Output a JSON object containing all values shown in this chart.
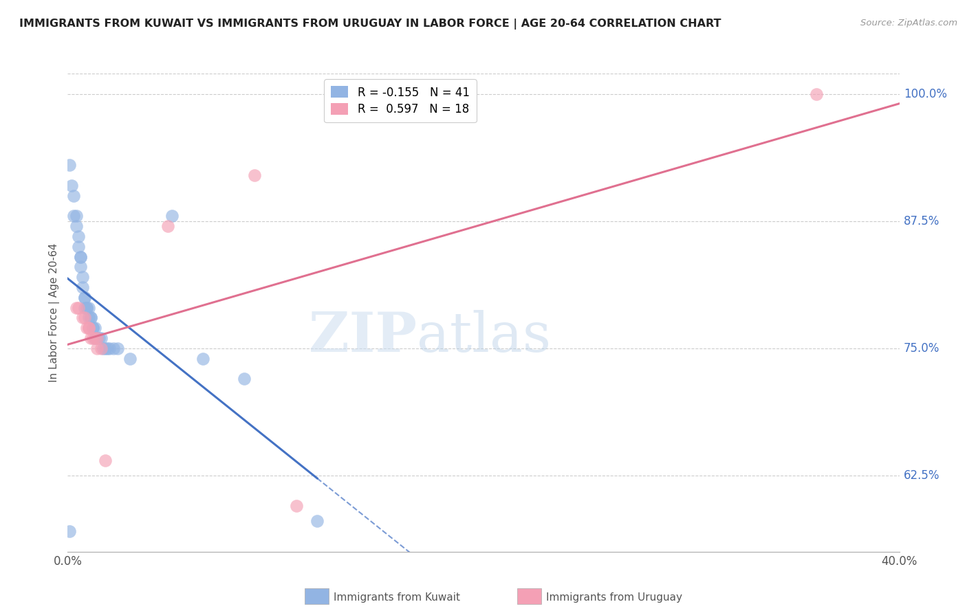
{
  "title": "IMMIGRANTS FROM KUWAIT VS IMMIGRANTS FROM URUGUAY IN LABOR FORCE | AGE 20-64 CORRELATION CHART",
  "source": "Source: ZipAtlas.com",
  "ylabel": "In Labor Force | Age 20-64",
  "xlim": [
    0.0,
    0.4
  ],
  "ylim": [
    0.55,
    1.02
  ],
  "yticks": [
    0.625,
    0.75,
    0.875,
    1.0
  ],
  "ytick_labels": [
    "62.5%",
    "75.0%",
    "87.5%",
    "100.0%"
  ],
  "xticks": [
    0.0,
    0.05,
    0.1,
    0.15,
    0.2,
    0.25,
    0.3,
    0.35,
    0.4
  ],
  "xtick_labels": [
    "0.0%",
    "",
    "",
    "",
    "",
    "",
    "",
    "",
    "40.0%"
  ],
  "kuwait_color": "#92b4e3",
  "uruguay_color": "#f4a0b5",
  "kuwait_R": -0.155,
  "kuwait_N": 41,
  "uruguay_R": 0.597,
  "uruguay_N": 18,
  "kuwait_line_color": "#4472c4",
  "uruguay_line_color": "#e07090",
  "watermark_zip": "ZIP",
  "watermark_atlas": "atlas",
  "kuwait_x": [
    0.001,
    0.002,
    0.003,
    0.003,
    0.004,
    0.004,
    0.005,
    0.005,
    0.006,
    0.006,
    0.006,
    0.007,
    0.007,
    0.008,
    0.008,
    0.008,
    0.009,
    0.009,
    0.01,
    0.01,
    0.011,
    0.011,
    0.012,
    0.012,
    0.013,
    0.013,
    0.014,
    0.015,
    0.016,
    0.017,
    0.018,
    0.019,
    0.02,
    0.022,
    0.024,
    0.03,
    0.05,
    0.065,
    0.085,
    0.12,
    0.001
  ],
  "kuwait_y": [
    0.93,
    0.91,
    0.9,
    0.88,
    0.88,
    0.87,
    0.86,
    0.85,
    0.84,
    0.84,
    0.83,
    0.82,
    0.81,
    0.8,
    0.8,
    0.79,
    0.79,
    0.79,
    0.79,
    0.78,
    0.78,
    0.78,
    0.77,
    0.77,
    0.77,
    0.76,
    0.76,
    0.76,
    0.76,
    0.75,
    0.75,
    0.75,
    0.75,
    0.75,
    0.75,
    0.74,
    0.88,
    0.74,
    0.72,
    0.58,
    0.57
  ],
  "uruguay_x": [
    0.004,
    0.005,
    0.007,
    0.008,
    0.009,
    0.01,
    0.01,
    0.011,
    0.012,
    0.013,
    0.014,
    0.014,
    0.016,
    0.018,
    0.048,
    0.09,
    0.11,
    0.36
  ],
  "uruguay_y": [
    0.79,
    0.79,
    0.78,
    0.78,
    0.77,
    0.77,
    0.77,
    0.76,
    0.76,
    0.76,
    0.76,
    0.75,
    0.75,
    0.64,
    0.87,
    0.92,
    0.595,
    1.0
  ],
  "legend_bottom_left": "Immigrants from Kuwait",
  "legend_bottom_right": "Immigrants from Uruguay"
}
